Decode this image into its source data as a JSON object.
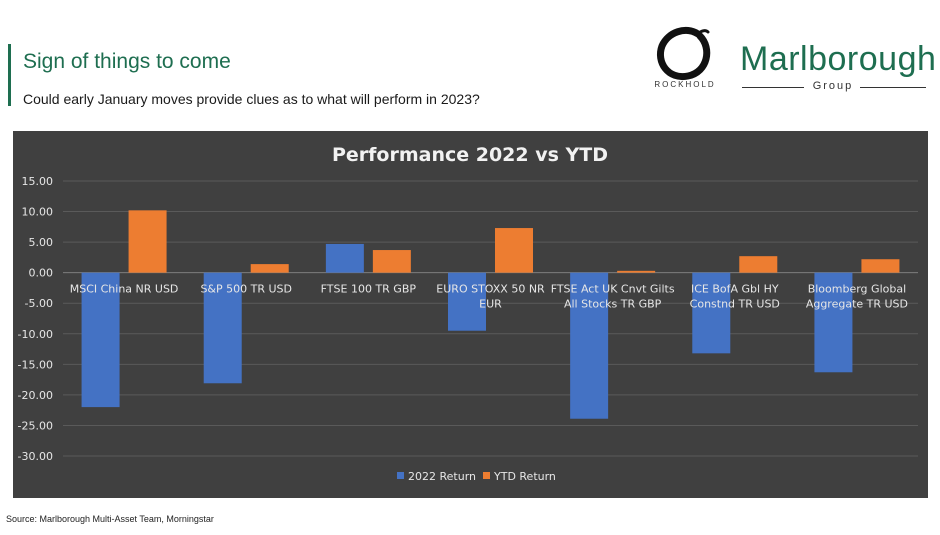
{
  "header": {
    "title": "Sign of things to come",
    "subtitle": "Could early January moves provide clues as to what will perform in 2023?"
  },
  "logos": {
    "rockhold": {
      "icon": "enso-circle-icon",
      "text": "ROCKHOLD"
    },
    "marlborough": {
      "name": "Marlborough",
      "group": "Group"
    }
  },
  "colors": {
    "accent": "#1e6e50",
    "chart_background": "#404040",
    "series_2022": "#4472c4",
    "series_ytd": "#ed7d31"
  },
  "chart_data": {
    "type": "bar",
    "title": "Performance 2022 vs YTD",
    "xlabel": "",
    "ylabel": "",
    "ylim": [
      -30,
      15
    ],
    "yticks": [
      "15.00",
      "10.00",
      "5.00",
      "0.00",
      "-5.00",
      "-10.00",
      "-15.00",
      "-20.00",
      "-25.00",
      "-30.00"
    ],
    "grid": true,
    "legend_position": "bottom",
    "categories": [
      [
        "MSCI China NR USD"
      ],
      [
        "S&P 500 TR USD"
      ],
      [
        "FTSE 100 TR GBP"
      ],
      [
        "EURO STOXX 50 NR",
        "EUR"
      ],
      [
        "FTSE Act UK Cnvt Gilts",
        "All Stocks TR GBP"
      ],
      [
        "ICE BofA Gbl HY",
        "Constnd TR USD"
      ],
      [
        "Bloomberg Global",
        "Aggregate TR USD"
      ]
    ],
    "series": [
      {
        "name": "2022 Return",
        "color": "#4472c4",
        "values": [
          -22.0,
          -18.1,
          4.7,
          -9.5,
          -23.9,
          -13.2,
          -16.3
        ]
      },
      {
        "name": "YTD Return",
        "color": "#ed7d31",
        "values": [
          10.2,
          1.4,
          3.7,
          7.3,
          0.3,
          2.7,
          2.2
        ]
      }
    ]
  },
  "footer": {
    "source": "Source: Marlborough Multi-Asset Team, Morningstar"
  }
}
